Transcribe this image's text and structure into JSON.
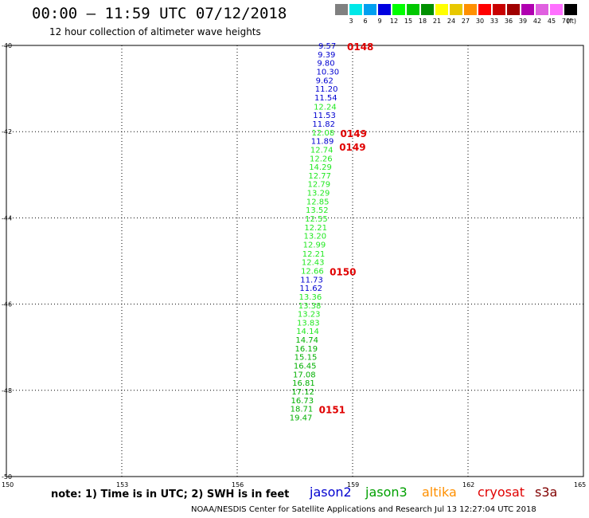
{
  "title": "00:00 – 11:59 UTC 07/12/2018",
  "subtitle": "12 hour collection of altimeter wave heights",
  "note": "note: 1) Time is in UTC; 2) SWH is in feet",
  "credit": "NOAA/NESDIS Center for Satellite Applications and Research    Jul 13 12:27:04 UTC 2018",
  "legend": {
    "unit": "(ft)",
    "levels": [
      {
        "label": "3",
        "color": "#808080"
      },
      {
        "label": "6",
        "color": "#00e8e8"
      },
      {
        "label": "9",
        "color": "#00a0f0"
      },
      {
        "label": "12",
        "color": "#0000e0"
      },
      {
        "label": "15",
        "color": "#00ff00"
      },
      {
        "label": "18",
        "color": "#00c800"
      },
      {
        "label": "21",
        "color": "#009000"
      },
      {
        "label": "24",
        "color": "#ffff00"
      },
      {
        "label": "27",
        "color": "#e8c800"
      },
      {
        "label": "30",
        "color": "#ff9000"
      },
      {
        "label": "33",
        "color": "#ff0000"
      },
      {
        "label": "36",
        "color": "#c80000"
      },
      {
        "label": "39",
        "color": "#a00000"
      },
      {
        "label": "42",
        "color": "#b000b0"
      },
      {
        "label": "45",
        "color": "#e060e0"
      },
      {
        "label": "70",
        "color": "#ff70ff"
      },
      {
        "label": "",
        "color": "#000000"
      }
    ]
  },
  "satellites": [
    {
      "name": "jason2",
      "color": "#0000d0"
    },
    {
      "name": "jason3",
      "color": "#00a000"
    },
    {
      "name": "altika",
      "color": "#ff9000"
    },
    {
      "name": "cryosat",
      "color": "#e00000"
    },
    {
      "name": "s3a",
      "color": "#800000"
    }
  ],
  "axes": {
    "lat_labels": [
      "-40",
      "-42",
      "-44",
      "-46",
      "-48",
      "-50"
    ],
    "lon_labels": [
      "150",
      "153",
      "156",
      "159",
      "162",
      "165"
    ]
  },
  "track": [
    {
      "v": "9.57",
      "lat": -40.02,
      "sat": "jason2"
    },
    {
      "v": "9.39",
      "lat": -40.22,
      "sat": "jason2"
    },
    {
      "v": "9.80",
      "lat": -40.42,
      "sat": "jason2"
    },
    {
      "v": "10.30",
      "lat": -40.62,
      "sat": "jason2"
    },
    {
      "v": "9.62",
      "lat": -40.82,
      "sat": "jason2"
    },
    {
      "v": "11.20",
      "lat": -41.02,
      "sat": "jason2"
    },
    {
      "v": "11.54",
      "lat": -41.22,
      "sat": "jason2"
    },
    {
      "v": "12.24",
      "lat": -41.43,
      "sat": "jason3"
    },
    {
      "v": "11.53",
      "lat": -41.63,
      "sat": "jason2"
    },
    {
      "v": "11.82",
      "lat": -41.83,
      "sat": "jason2"
    },
    {
      "v": "12.08",
      "lat": -42.03,
      "sat": "jason3"
    },
    {
      "v": "11.89",
      "lat": -42.23,
      "sat": "jason2"
    },
    {
      "v": "12.74",
      "lat": -42.43,
      "sat": "jason3"
    },
    {
      "v": "12.26",
      "lat": -42.63,
      "sat": "jason3"
    },
    {
      "v": "14.29",
      "lat": -42.83,
      "sat": "jason3"
    },
    {
      "v": "12.77",
      "lat": -43.03,
      "sat": "jason3"
    },
    {
      "v": "12.79",
      "lat": -43.23,
      "sat": "jason3"
    },
    {
      "v": "13.29",
      "lat": -43.43,
      "sat": "jason3"
    },
    {
      "v": "12.85",
      "lat": -43.63,
      "sat": "jason3"
    },
    {
      "v": "13.52",
      "lat": -43.83,
      "sat": "jason3"
    },
    {
      "v": "12.55",
      "lat": -44.03,
      "sat": "jason3"
    },
    {
      "v": "12.21",
      "lat": -44.23,
      "sat": "jason3"
    },
    {
      "v": "13.20",
      "lat": -44.43,
      "sat": "jason3"
    },
    {
      "v": "12.99",
      "lat": -44.63,
      "sat": "jason3"
    },
    {
      "v": "12.21",
      "lat": -44.84,
      "sat": "jason3"
    },
    {
      "v": "12.43",
      "lat": -45.04,
      "sat": "jason3"
    },
    {
      "v": "12.66",
      "lat": -45.24,
      "sat": "jason3"
    },
    {
      "v": "11.73",
      "lat": -45.44,
      "sat": "jason2"
    },
    {
      "v": "11.62",
      "lat": -45.64,
      "sat": "jason2"
    },
    {
      "v": "13.36",
      "lat": -45.84,
      "sat": "jason3"
    },
    {
      "v": "13.38",
      "lat": -46.04,
      "sat": "jason3"
    },
    {
      "v": "13.23",
      "lat": -46.24,
      "sat": "jason3"
    },
    {
      "v": "13.83",
      "lat": -46.44,
      "sat": "jason3"
    },
    {
      "v": "14.14",
      "lat": -46.64,
      "sat": "jason3"
    },
    {
      "v": "14.74",
      "lat": -46.84,
      "sat": "jason3"
    },
    {
      "v": "16.19",
      "lat": -47.04,
      "sat": "jason3"
    },
    {
      "v": "15.15",
      "lat": -47.24,
      "sat": "jason3"
    },
    {
      "v": "16.45",
      "lat": -47.44,
      "sat": "jason3"
    },
    {
      "v": "17.08",
      "lat": -47.64,
      "sat": "jason3"
    },
    {
      "v": "16.81",
      "lat": -47.84,
      "sat": "jason3"
    },
    {
      "v": "17.12",
      "lat": -48.04,
      "sat": "jason3"
    },
    {
      "v": "16.73",
      "lat": -48.24,
      "sat": "jason3"
    },
    {
      "v": "18.71",
      "lat": -48.44,
      "sat": "jason3"
    },
    {
      "v": "19.47",
      "lat": -48.64,
      "sat": "jason3"
    }
  ],
  "time_labels": [
    {
      "text": "0148",
      "lat": -40.02
    },
    {
      "text": "0149",
      "lat": -42.03
    },
    {
      "text": "0149",
      "lat": -42.35
    },
    {
      "text": "0150",
      "lat": -45.24
    },
    {
      "text": "0151",
      "lat": -48.44
    }
  ]
}
